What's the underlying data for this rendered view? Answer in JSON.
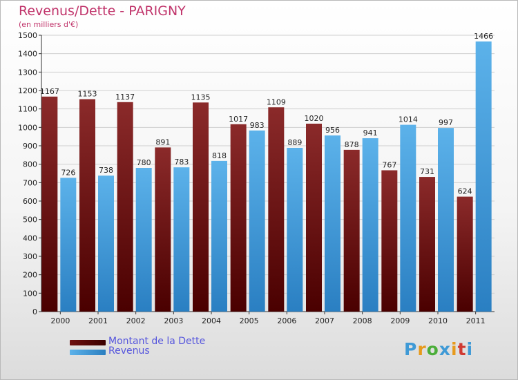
{
  "header": {
    "title": "Revenus/Dette - PARIGNY",
    "subtitle": "(en milliers d'€)"
  },
  "legend": [
    {
      "label": "Montant de la Dette",
      "color": "#6e1010"
    },
    {
      "label": "Revenus",
      "color": "#3399dd"
    }
  ],
  "logo": {
    "text": "Proxiti",
    "letters": [
      "P",
      "r",
      "o",
      "x",
      "i",
      "t",
      "i"
    ],
    "colors": [
      "#3f9ad6",
      "#e79a1c",
      "#4cae3a",
      "#3f9ad6",
      "#e79a1c",
      "#d03a32",
      "#3f9ad6"
    ]
  },
  "chart_data": {
    "type": "bar",
    "categories": [
      "2000",
      "2001",
      "2002",
      "2003",
      "2004",
      "2005",
      "2006",
      "2007",
      "2008",
      "2009",
      "2010",
      "2011"
    ],
    "series": [
      {
        "name": "Montant de la Dette",
        "values": [
          1167,
          1153,
          1137,
          891,
          1135,
          1017,
          1109,
          1020,
          878,
          767,
          731,
          624
        ]
      },
      {
        "name": "Revenus",
        "values": [
          726,
          738,
          780,
          783,
          818,
          983,
          889,
          956,
          941,
          1014,
          997,
          1466
        ]
      }
    ],
    "ylim": [
      0,
      1500
    ],
    "yticks": [
      0,
      100,
      200,
      300,
      400,
      500,
      600,
      700,
      800,
      900,
      1000,
      1100,
      1200,
      1300,
      1400,
      1500
    ],
    "grid": true,
    "legend_position": "bottom-left"
  }
}
